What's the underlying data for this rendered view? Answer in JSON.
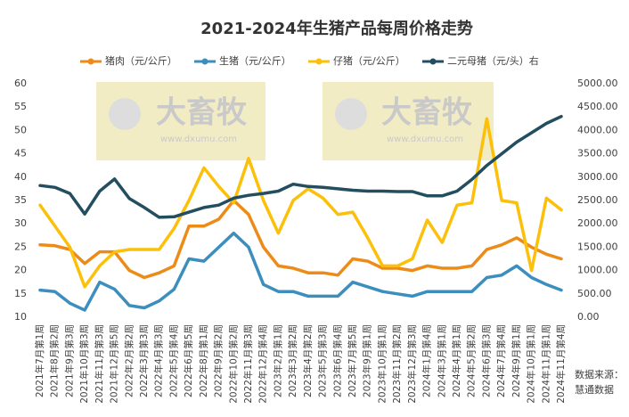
{
  "chart_data": {
    "type": "line",
    "title": "2021-2024年生猪产品每周价格走势",
    "source_line1": "数据来源：",
    "source_line2": "慧通数据",
    "watermark": "大畜牧",
    "watermark_url": "www.dxumu.com",
    "categories": [
      "2021年7月第1周",
      "2021年8月第2周",
      "2021年9月第3周",
      "2021年10月第3周",
      "2021年11月第3周",
      "2021年12月第5周",
      "2022年2月第2周",
      "2022年3月第3周",
      "2022年4月第3周",
      "2022年5月第4周",
      "2022年6月第5周",
      "2022年8月第1周",
      "2022年9月第2周",
      "2022年10月第2周",
      "2022年11月第3周",
      "2022年12月第4周",
      "2023年2月第1周",
      "2023年3月第2周",
      "2023年4月第2周",
      "2023年5月第3周",
      "2023年6月第4周",
      "2023年7月第5周",
      "2023年9月第1周",
      "2023年10月第1周",
      "2023年11月第2周",
      "2023年12月第3周",
      "2024年1月第4周",
      "2024年3月第1周",
      "2024年4月第1周",
      "2024年5月第2周",
      "2024年6月第3周",
      "2024年7月第4周",
      "2024年9月第1周",
      "2024年10月第1周",
      "2024年11月第1周",
      "2024年11月第4周"
    ],
    "series": [
      {
        "name": "猪肉（元/公斤）",
        "color": "#ed8b18",
        "values": [
          25.5,
          25.3,
          24.5,
          21.5,
          24,
          24,
          20,
          18.5,
          19.5,
          21,
          29.5,
          29.5,
          31,
          35,
          32,
          25,
          21,
          20.5,
          19.5,
          19.5,
          19,
          22.5,
          22,
          20.5,
          20.5,
          20,
          21,
          20.5,
          20.5,
          21,
          24.5,
          25.5,
          27,
          25,
          23.5,
          22.5
        ]
      },
      {
        "name": "生猪（元/公斤）",
        "color": "#3b8ebd",
        "values": [
          15.8,
          15.5,
          13,
          11.5,
          17.5,
          16,
          12.5,
          12,
          13.5,
          16,
          22.5,
          22,
          25,
          28,
          25,
          17,
          15.5,
          15.5,
          14.5,
          14.5,
          14.5,
          17.5,
          16.5,
          15.5,
          15,
          14.5,
          15.5,
          15.5,
          15.5,
          15.5,
          18.5,
          19,
          21,
          18.5,
          17,
          15.8
        ]
      },
      {
        "name": "仔猪（元/公斤）",
        "color": "#fcc00a",
        "values": [
          34,
          29.5,
          25,
          16.5,
          21,
          24,
          24.5,
          24.5,
          24.5,
          29,
          35,
          42,
          38,
          34.5,
          44,
          35,
          28,
          35,
          37.5,
          35.5,
          32,
          32.5,
          27,
          21,
          21,
          22.5,
          30.8,
          26,
          34,
          34.5,
          52.5,
          35,
          34.5,
          20,
          35.5,
          33
        ]
      },
      {
        "name": "二元母猪（元/头）右",
        "color": "#234e60",
        "axis": "y2",
        "values": [
          2820,
          2780,
          2650,
          2210,
          2700,
          2960,
          2540,
          2350,
          2140,
          2150,
          2250,
          2350,
          2400,
          2550,
          2610,
          2650,
          2700,
          2850,
          2800,
          2780,
          2750,
          2720,
          2700,
          2700,
          2690,
          2690,
          2600,
          2600,
          2700,
          2950,
          3250,
          3500,
          3750,
          3950,
          4150,
          4300
        ]
      }
    ],
    "ylim": [
      10,
      60
    ],
    "yticks": [
      10,
      15,
      20,
      25,
      30,
      35,
      40,
      45,
      50,
      55,
      60
    ],
    "y2lim": [
      0,
      5000
    ],
    "y2ticks": [
      {
        "value": 0,
        "label": "0.00"
      },
      {
        "value": 500,
        "label": "500.00"
      },
      {
        "value": 1000,
        "label": "1000.00"
      },
      {
        "value": 1500,
        "label": "1500.00"
      },
      {
        "value": 2000,
        "label": "2000.00"
      },
      {
        "value": 2500,
        "label": "2500.00"
      },
      {
        "value": 3000,
        "label": "3000.00"
      },
      {
        "value": 3500,
        "label": "3500.00"
      },
      {
        "value": 4000,
        "label": "4000.00"
      },
      {
        "value": 4500,
        "label": "4500.00"
      },
      {
        "value": 5000,
        "label": "5000.00"
      }
    ],
    "grid": false,
    "legend": "top"
  }
}
